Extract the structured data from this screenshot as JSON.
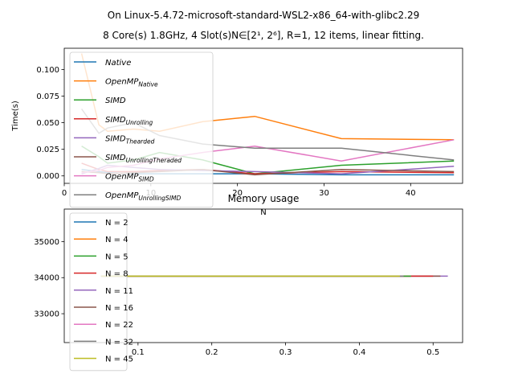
{
  "figure": {
    "title_line1": "On Linux-5.4.72-microsoft-standard-WSL2-x86_64-with-glibc2.29",
    "title_line2": "8 Core(s) 1.8GHz, 4 Slot(s)N∈[2¹, 2⁶], R=1, 12 items, linear fitting."
  },
  "colors": {
    "Native": "#1f77b4",
    "OpenMP_Native": "#ff7f0e",
    "SIMD": "#2ca02c",
    "SIMD_Unrolling": "#d62728",
    "SIMD_Thearded": "#9467bd",
    "SIMD_UnrollingTherded": "#8c564b",
    "OpenMP_SIMD": "#e377c2",
    "OpenMP_UnrollingSIMD": "#7f7f7f",
    "N45": "#bcbd22"
  },
  "chart_data": [
    {
      "type": "line",
      "title": "",
      "xlabel": "N",
      "ylabel": "Time(s)",
      "xlim": [
        0,
        46
      ],
      "ylim": [
        -0.007,
        0.12
      ],
      "xticks": [
        0,
        10,
        20,
        30,
        40
      ],
      "yticks": [
        0.0,
        0.025,
        0.05,
        0.075,
        0.1
      ],
      "ytick_labels": [
        "0.000",
        "0.025",
        "0.050",
        "0.075",
        "0.100"
      ],
      "legend_position": "upper left",
      "grid": false,
      "x": [
        2,
        4,
        5,
        8,
        11,
        16,
        22,
        32,
        45
      ],
      "series": [
        {
          "name": "Native",
          "base": "Native",
          "sub": "",
          "color_key": "Native",
          "values": [
            0.006,
            0.004,
            0.003,
            0.002,
            0.002,
            0.002,
            0.002,
            0.001,
            0.001
          ]
        },
        {
          "name": "OpenMP_Native",
          "base": "OpenMP",
          "sub": "Native",
          "color_key": "OpenMP_Native",
          "values": [
            0.115,
            0.048,
            0.042,
            0.044,
            0.042,
            0.051,
            0.056,
            0.035,
            0.034
          ]
        },
        {
          "name": "SIMD",
          "base": "SIMD",
          "sub": "",
          "color_key": "SIMD",
          "values": [
            0.028,
            0.018,
            0.012,
            0.015,
            0.022,
            0.015,
            0.002,
            0.01,
            0.014
          ]
        },
        {
          "name": "SIMD_Unrolling",
          "base": "SIMD",
          "sub": "Unrolling",
          "color_key": "SIMD_Unrolling",
          "values": [
            0.012,
            0.006,
            0.004,
            0.004,
            0.005,
            0.006,
            0.002,
            0.004,
            0.003
          ]
        },
        {
          "name": "SIMD_Thearded",
          "base": "SIMD",
          "sub": "Thearded",
          "color_key": "SIMD_Thearded",
          "values": [
            0.002,
            0.007,
            0.01,
            0.008,
            0.006,
            0.005,
            0.004,
            0.002,
            0.009
          ]
        },
        {
          "name": "SIMD_UnrollingTheraded",
          "base": "SIMD",
          "sub": "UnrollingTheraded",
          "color_key": "SIMD_UnrollingTherded",
          "values": [
            0.004,
            0.003,
            0.002,
            0.003,
            0.004,
            0.006,
            0.001,
            0.006,
            0.004
          ]
        },
        {
          "name": "OpenMP_SIMD",
          "base": "OpenMP",
          "sub": "SIMD",
          "color_key": "OpenMP_SIMD",
          "values": [
            0.003,
            0.005,
            0.008,
            0.01,
            0.016,
            0.022,
            0.028,
            0.014,
            0.034
          ]
        },
        {
          "name": "OpenMP_UnrollingSIMD",
          "base": "OpenMP",
          "sub": "UnrollingSIMD",
          "color_key": "OpenMP_UnrollingSIMD",
          "values": [
            0.063,
            0.04,
            0.045,
            0.05,
            0.038,
            0.03,
            0.026,
            0.026,
            0.015
          ]
        }
      ]
    },
    {
      "type": "line",
      "title": "Memory usage",
      "xlabel": "",
      "ylabel": "",
      "xlim": [
        0.0,
        0.54
      ],
      "ylim": [
        32200,
        35900
      ],
      "xticks": [
        0.1,
        0.2,
        0.3,
        0.4,
        0.5
      ],
      "yticks": [
        33000,
        34000,
        35000
      ],
      "legend_position": "upper left",
      "grid": false,
      "series": [
        {
          "name": "N = 2",
          "color_key": "Native",
          "x": [
            0.05,
            0.47
          ],
          "values": [
            34040,
            34040
          ]
        },
        {
          "name": "N = 4",
          "color_key": "OpenMP_Native",
          "x": [
            0.05,
            0.47
          ],
          "values": [
            34040,
            34040
          ]
        },
        {
          "name": "N = 5",
          "color_key": "SIMD",
          "x": [
            0.05,
            0.47
          ],
          "values": [
            34040,
            34040
          ]
        },
        {
          "name": "N = 8",
          "color_key": "SIMD_Unrolling",
          "x": [
            0.05,
            0.5
          ],
          "values": [
            34040,
            34040
          ]
        },
        {
          "name": "N = 11",
          "color_key": "SIMD_Thearded",
          "x": [
            0.05,
            0.52
          ],
          "values": [
            34040,
            34040
          ]
        },
        {
          "name": "N = 16",
          "color_key": "SIMD_UnrollingTherded",
          "x": [
            0.05,
            0.51
          ],
          "values": [
            34040,
            34040
          ]
        },
        {
          "name": "N = 22",
          "color_key": "OpenMP_SIMD",
          "x": [
            0.05,
            0.46
          ],
          "values": [
            34040,
            34040
          ]
        },
        {
          "name": "N = 32",
          "color_key": "OpenMP_UnrollingSIMD",
          "x": [
            0.05,
            0.46
          ],
          "values": [
            34040,
            34040
          ]
        },
        {
          "name": "N = 45",
          "color_key": "N45",
          "x": [
            0.05,
            0.455
          ],
          "values": [
            34040,
            34040
          ]
        }
      ]
    }
  ]
}
